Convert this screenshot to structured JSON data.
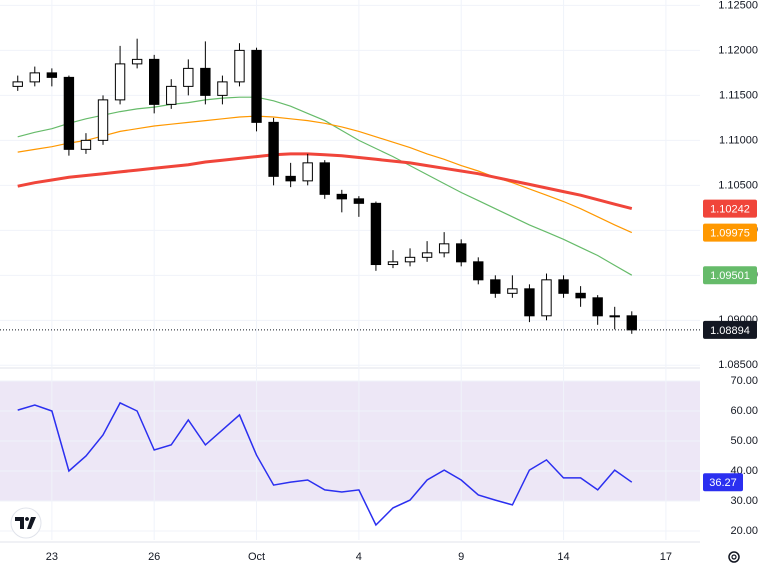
{
  "chart_data": [
    {
      "type": "candlestick",
      "x": [
        -1,
        -0.5,
        0,
        0.5,
        1,
        1.5,
        2,
        2.5,
        3,
        3.5,
        4,
        4.5,
        5,
        5.5,
        6,
        6.5,
        7,
        7.5,
        8,
        8.5,
        9,
        9.5,
        10,
        10.5,
        11,
        11.5,
        12,
        12.5,
        13,
        13.5,
        14,
        14.5,
        15,
        15.5,
        16,
        16.5,
        17
      ],
      "open": [
        1.116,
        1.1165,
        1.1175,
        1.117,
        1.109,
        1.11,
        1.1145,
        1.1185,
        1.119,
        1.114,
        1.116,
        1.118,
        1.115,
        1.1165,
        1.12,
        1.112,
        1.106,
        1.1055,
        1.1075,
        1.104,
        1.1035,
        1.103,
        1.0962,
        1.0965,
        1.097,
        1.0975,
        1.0985,
        1.0965,
        1.0945,
        1.093,
        1.0935,
        1.0905,
        1.0945,
        1.093,
        1.0925,
        1.0905,
        1.0905
      ],
      "high": [
        1.1172,
        1.1182,
        1.118,
        1.1172,
        1.1108,
        1.115,
        1.1205,
        1.1213,
        1.1195,
        1.1168,
        1.119,
        1.121,
        1.1172,
        1.1208,
        1.1203,
        1.1125,
        1.1075,
        1.1085,
        1.1078,
        1.1045,
        1.1038,
        1.1032,
        1.0978,
        1.098,
        1.0988,
        1.0998,
        1.099,
        1.097,
        1.095,
        1.095,
        1.094,
        1.0952,
        1.095,
        1.0938,
        1.0928,
        1.0915,
        1.091
      ],
      "low": [
        1.1155,
        1.116,
        1.116,
        1.1083,
        1.1085,
        1.1095,
        1.114,
        1.118,
        1.113,
        1.1135,
        1.115,
        1.114,
        1.114,
        1.116,
        1.111,
        1.105,
        1.1048,
        1.105,
        1.1035,
        1.102,
        1.1015,
        1.0955,
        1.0958,
        1.096,
        1.0965,
        1.097,
        1.096,
        1.094,
        1.0925,
        1.0925,
        1.0898,
        1.09,
        1.0925,
        1.0915,
        1.0895,
        1.089,
        1.0885
      ],
      "close": [
        1.1165,
        1.1175,
        1.117,
        1.109,
        1.11,
        1.1145,
        1.1185,
        1.119,
        1.114,
        1.116,
        1.118,
        1.115,
        1.1165,
        1.12,
        1.112,
        1.106,
        1.1055,
        1.1075,
        1.104,
        1.1035,
        1.103,
        1.0962,
        1.0965,
        1.097,
        1.0975,
        1.0985,
        1.0965,
        1.0945,
        1.093,
        1.0935,
        1.0905,
        1.0945,
        1.093,
        1.0925,
        1.0905,
        1.0905,
        1.08894
      ],
      "up_color": "#ffffff",
      "down_color": "#000000",
      "series": [
        {
          "color": "#66bb6a",
          "values": [
            1.1104,
            1.1109,
            1.1113,
            1.1119,
            1.1124,
            1.1128,
            1.1132,
            1.1135,
            1.1137,
            1.114,
            1.1142,
            1.1145,
            1.1147,
            1.1148,
            1.1148,
            1.1144,
            1.1138,
            1.113,
            1.1122,
            1.1111,
            1.11,
            1.1091,
            1.1082,
            1.1072,
            1.1062,
            1.1052,
            1.1042,
            1.1033,
            1.1024,
            1.1015,
            1.1006,
            1.0998,
            1.099,
            1.0981,
            1.0972,
            1.0961,
            1.09501
          ]
        },
        {
          "color": "#ff9800",
          "values": [
            1.1087,
            1.109,
            1.1093,
            1.1097,
            1.11,
            1.1105,
            1.111,
            1.1113,
            1.1116,
            1.1118,
            1.112,
            1.1122,
            1.1124,
            1.1126,
            1.1127,
            1.1126,
            1.1124,
            1.1122,
            1.1119,
            1.1115,
            1.111,
            1.1104,
            1.1098,
            1.1092,
            1.1085,
            1.1079,
            1.1072,
            1.1066,
            1.1059,
            1.1053,
            1.1046,
            1.1039,
            1.1032,
            1.1024,
            1.1015,
            1.1006,
            1.09975
          ]
        },
        {
          "color": "#f0453a",
          "values": [
            1.1049,
            1.1053,
            1.1056,
            1.1059,
            1.1061,
            1.1063,
            1.1065,
            1.1067,
            1.1069,
            1.1071,
            1.1073,
            1.1076,
            1.1078,
            1.108,
            1.1082,
            1.1084,
            1.1085,
            1.1085,
            1.1084,
            1.1083,
            1.1081,
            1.1079,
            1.1077,
            1.1075,
            1.1072,
            1.1069,
            1.1066,
            1.1063,
            1.1059,
            1.1055,
            1.1051,
            1.1047,
            1.1043,
            1.1039,
            1.1034,
            1.1029,
            1.10242
          ]
        }
      ],
      "xlim": [
        -1.52,
        19.0
      ],
      "xticks": [
        {
          "value": 0,
          "label": "23"
        },
        {
          "value": 3,
          "label": "26"
        },
        {
          "value": 6,
          "label": "Oct"
        },
        {
          "value": 9,
          "label": "4"
        },
        {
          "value": 12,
          "label": "9"
        },
        {
          "value": 15,
          "label": "14"
        },
        {
          "value": 18,
          "label": "17"
        }
      ],
      "ylim": [
        1.0847,
        1.1256
      ],
      "yticks": [
        {
          "value": 1.085,
          "label": "1.08500"
        },
        {
          "value": 1.09,
          "label": "1.09000"
        },
        {
          "value": 1.095,
          "label": "1.09500"
        },
        {
          "value": 1.1,
          "label": "1.10000"
        },
        {
          "value": 1.105,
          "label": "1.10500"
        },
        {
          "value": 1.11,
          "label": "1.11000"
        },
        {
          "value": 1.115,
          "label": "1.11500"
        },
        {
          "value": 1.12,
          "label": "1.12000"
        },
        {
          "value": 1.125,
          "label": "1.12500"
        }
      ],
      "grid": true
    },
    {
      "type": "line",
      "values": [
        60.3,
        62,
        60,
        40,
        45,
        52,
        62.7,
        60,
        47,
        48.7,
        57,
        48.7,
        53.7,
        58.7,
        45.3,
        35.3,
        36.3,
        37,
        33.7,
        33,
        33.7,
        22,
        27.7,
        30.3,
        37,
        40.3,
        37,
        32,
        30.3,
        28.7,
        40.3,
        43.7,
        37.7,
        37.7,
        33.7,
        40.3,
        36.27
      ],
      "color": "#2b2ff0",
      "band": [
        30,
        70
      ],
      "band_color": "#ede7f6",
      "ylim": [
        17,
        72
      ],
      "yticks": [
        {
          "value": 20,
          "label": "20.00"
        },
        {
          "value": 30,
          "label": "30.00"
        },
        {
          "value": 40,
          "label": "40.00"
        },
        {
          "value": 50,
          "label": "50.00"
        },
        {
          "value": 60,
          "label": "60.00"
        },
        {
          "value": 70,
          "label": "70.00"
        }
      ],
      "grid": true
    }
  ]
}
